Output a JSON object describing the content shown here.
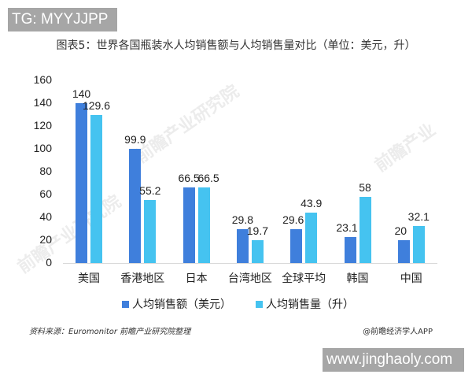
{
  "overlay": {
    "top_badge": "TG: MYYJJPP",
    "bottom_badge": "www.jinghaoly.com"
  },
  "watermarks": [
    "前瞻产业研究院",
    "前瞻产业",
    "前瞻产业研究院"
  ],
  "chart_data": {
    "type": "bar",
    "title": "图表5：世界各国瓶装水人均销售额与人均销售量对比（单位：美元，升）",
    "xlabel": "",
    "ylabel": "",
    "ylim": [
      0,
      160
    ],
    "yticks": [
      "0",
      "20",
      "40",
      "60",
      "80",
      "100",
      "120",
      "140",
      "160"
    ],
    "grid": false,
    "legend_position": "bottom",
    "categories": [
      "美国",
      "香港地区",
      "日本",
      "台湾地区",
      "全球平均",
      "韩国",
      "中国"
    ],
    "series": [
      {
        "name": "人均销售额（美元）",
        "color": "#3f7fdc",
        "values": [
          140,
          99.9,
          66.5,
          29.8,
          29.6,
          23.1,
          20
        ]
      },
      {
        "name": "人均销售量（升）",
        "color": "#45c3f0",
        "values": [
          129.6,
          55.2,
          66.5,
          19.7,
          43.9,
          58,
          32.1
        ]
      }
    ],
    "value_labels": [
      [
        "140",
        "99.9",
        "66.5",
        "29.8",
        "29.6",
        "23.1",
        "20"
      ],
      [
        "129.6",
        "55.2",
        "66.5",
        "19.7",
        "43.9",
        "58",
        "32.1"
      ]
    ]
  },
  "footer": {
    "source": "资料来源：Euromonitor 前瞻产业研究院整理",
    "credit": "@前瞻经济学人APP"
  }
}
